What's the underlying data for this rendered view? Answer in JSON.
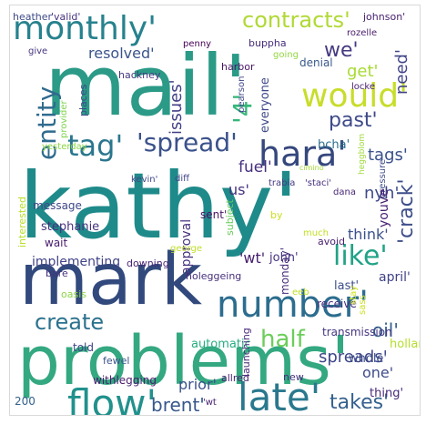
{
  "word_cloud": {
    "words": [
      {
        "text": "mail'",
        "color": "#2b9a87"
      },
      {
        "text": "kathy'",
        "color": "#1f8a8a"
      },
      {
        "text": "problems'",
        "color": "#34a880"
      },
      {
        "text": "mark",
        "color": "#31497c"
      },
      {
        "text": "monthly'",
        "color": "#26828e"
      },
      {
        "text": "contracts'",
        "color": "#b0d935"
      },
      {
        "text": "number'",
        "color": "#2c6d8e"
      },
      {
        "text": "would'",
        "color": "#c8dd2a"
      },
      {
        "text": "hara'",
        "color": "#35477d"
      },
      {
        "text": "flow'",
        "color": "#21918c"
      },
      {
        "text": "late'",
        "color": "#2a788e"
      },
      {
        "text": "tag'",
        "color": "#2a768e"
      },
      {
        "text": "'spread'",
        "color": "#3b528b"
      },
      {
        "text": "create",
        "color": "#2c728e"
      },
      {
        "text": "half",
        "color": "#6ccd5a"
      },
      {
        "text": "like'",
        "color": "#20a386"
      },
      {
        "text": "entity",
        "color": "#2f6b8e"
      },
      {
        "text": "we'",
        "color": "#443a83"
      },
      {
        "text": "past'",
        "color": "#3e4a89"
      },
      {
        "text": "takes'",
        "color": "#34618d"
      },
      {
        "text": "brent'",
        "color": "#38588c"
      },
      {
        "text": "'crack'",
        "color": "#3d4e8a"
      },
      {
        "text": "resolved'",
        "color": "#3a548c"
      },
      {
        "text": "issues'",
        "color": "#424086"
      },
      {
        "text": "tags'",
        "color": "#3b518b"
      },
      {
        "text": "'4'",
        "color": "#35b779"
      },
      {
        "text": "get'",
        "color": "#a8db34"
      },
      {
        "text": "need'",
        "color": "#414487"
      },
      {
        "text": "spreads'",
        "color": "#3f4788"
      },
      {
        "text": "fuel'",
        "color": "#472f7d"
      },
      {
        "text": "us'",
        "color": "#46327e"
      },
      {
        "text": "nyh'",
        "color": "#3e4989"
      },
      {
        "text": "think'",
        "color": "#3b528b"
      },
      {
        "text": "oil'",
        "color": "#355f8d"
      },
      {
        "text": "one'",
        "color": "#3e4c8a"
      },
      {
        "text": "prior'",
        "color": "#3b528b"
      },
      {
        "text": "'wt'",
        "color": "#481f70"
      },
      {
        "text": "john'",
        "color": "#463480"
      },
      {
        "text": "implementing",
        "color": "#414487"
      },
      {
        "text": "message",
        "color": "#3f4889"
      },
      {
        "text": "april'",
        "color": "#414287"
      },
      {
        "text": "last'",
        "color": "#3c4f8a"
      },
      {
        "text": "whole'",
        "color": "#3d4e8a"
      },
      {
        "text": "thing'",
        "color": "#482878"
      },
      {
        "text": "everyone",
        "color": "#3e4a89"
      },
      {
        "text": "bcha'",
        "color": "#2e6e8e"
      },
      {
        "text": "approval",
        "color": "#46327e"
      },
      {
        "text": "monday'",
        "color": "#472c7a"
      },
      {
        "text": "automatic",
        "color": "#26ad81"
      },
      {
        "text": "heather",
        "color": "#3e4a89"
      },
      {
        "text": "'valid'",
        "color": "#46337f"
      },
      {
        "text": "johnson'",
        "color": "#482071"
      },
      {
        "text": "rozelle",
        "color": "#481a6c"
      },
      {
        "text": "give",
        "color": "#463480"
      },
      {
        "text": "penny",
        "color": "#440154"
      },
      {
        "text": "buppha",
        "color": "#472c7a"
      },
      {
        "text": "harbor",
        "color": "#481467"
      },
      {
        "text": "denial",
        "color": "#38598c"
      },
      {
        "text": "going",
        "color": "#93d741"
      },
      {
        "text": "hackney",
        "color": "#453781"
      },
      {
        "text": "pearson",
        "color": "#404688"
      },
      {
        "text": "locke",
        "color": "#481d6f"
      },
      {
        "text": "heggblom",
        "color": "#9fda3a"
      },
      {
        "text": "dana",
        "color": "#482677"
      },
      {
        "text": "places",
        "color": "#3e4989"
      },
      {
        "text": "provider",
        "color": "#7fd34e"
      },
      {
        "text": "yesterday",
        "color": "#8bd646"
      },
      {
        "text": "sent'",
        "color": "#471365"
      },
      {
        "text": "kevin'",
        "color": "#3f4788"
      },
      {
        "text": "diff",
        "color": "#404588"
      },
      {
        "text": "trabia",
        "color": "#453882"
      },
      {
        "text": "'staci'",
        "color": "#46307e"
      },
      {
        "text": "pressure",
        "color": "#3d4d8a"
      },
      {
        "text": "youve",
        "color": "#482173"
      },
      {
        "text": "subject",
        "color": "#67cc5c"
      },
      {
        "text": "cimino",
        "color": "#a5db36"
      },
      {
        "text": "interested",
        "color": "#b8de29"
      },
      {
        "text": "stephanie",
        "color": "#46327e"
      },
      {
        "text": "wait",
        "color": "#481c6e"
      },
      {
        "text": "bare",
        "color": "#46337f"
      },
      {
        "text": "downing",
        "color": "#482475"
      },
      {
        "text": "george",
        "color": "#bddf26"
      },
      {
        "text": "noleggeing",
        "color": "#472f7d"
      },
      {
        "text": "much",
        "color": "#c2df23"
      },
      {
        "text": "avoid",
        "color": "#481f70"
      },
      {
        "text": "oasis",
        "color": "#8bd646"
      },
      {
        "text": "fewel",
        "color": "#3a538b"
      },
      {
        "text": "launching",
        "color": "#482979"
      },
      {
        "text": "receive",
        "color": "#46307e"
      },
      {
        "text": "transmission",
        "color": "#453781"
      },
      {
        "text": "holland",
        "color": "#b5de2b"
      },
      {
        "text": "told",
        "color": "#3f4788"
      },
      {
        "text": "withlegging",
        "color": "#481d6f"
      },
      {
        "text": "allred",
        "color": "#482374"
      },
      {
        "text": "new",
        "color": "#472f7d"
      },
      {
        "text": "200",
        "color": "#34618d"
      },
      {
        "text": "eeb",
        "color": "#c0df25"
      },
      {
        "text": "by",
        "color": "#ccdf1f"
      },
      {
        "text": "'wt",
        "color": "#482173"
      },
      {
        "text": "stay",
        "color": "#d2e21b"
      },
      {
        "text": "sass",
        "color": "#cae11f"
      }
    ]
  }
}
